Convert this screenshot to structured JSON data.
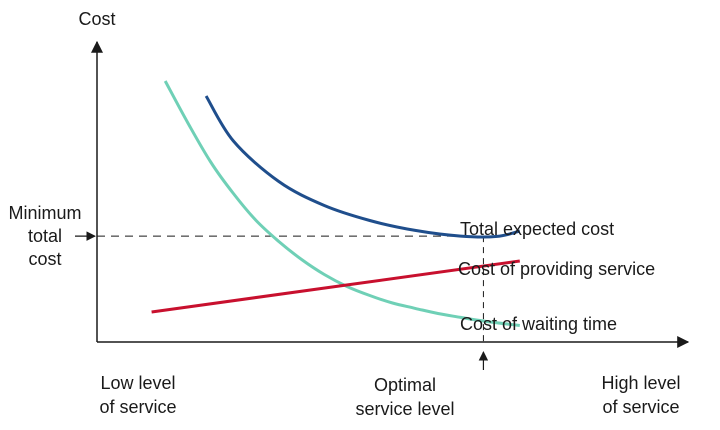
{
  "chart_data": {
    "type": "line",
    "ylabel": "Cost",
    "xlabel_left": [
      "Low level",
      "of service"
    ],
    "xlabel_right": [
      "High level",
      "of service"
    ],
    "optimal_label": [
      "Optimal",
      "service level"
    ],
    "min_cost_label": [
      "Minimum",
      "total",
      "cost"
    ],
    "series": [
      {
        "name": "Total expected cost",
        "color": "#1f4e8c",
        "points": [
          [
            0.24,
            8.2
          ],
          [
            0.3,
            6.7
          ],
          [
            0.4,
            5.35
          ],
          [
            0.5,
            4.55
          ],
          [
            0.6,
            4.05
          ],
          [
            0.7,
            3.72
          ],
          [
            0.8,
            3.53
          ],
          [
            0.88,
            3.52
          ],
          [
            0.93,
            3.7
          ]
        ]
      },
      {
        "name": "Cost of providing service",
        "color": "#c8102e",
        "points": [
          [
            0.12,
            1.0
          ],
          [
            0.93,
            2.7
          ]
        ]
      },
      {
        "name": "Cost of waiting time",
        "color": "#6fd0b6",
        "points": [
          [
            0.15,
            8.7
          ],
          [
            0.2,
            7.3
          ],
          [
            0.25,
            6.0
          ],
          [
            0.3,
            4.95
          ],
          [
            0.35,
            4.05
          ],
          [
            0.4,
            3.35
          ],
          [
            0.45,
            2.75
          ],
          [
            0.5,
            2.25
          ],
          [
            0.55,
            1.85
          ],
          [
            0.6,
            1.55
          ],
          [
            0.65,
            1.3
          ],
          [
            0.7,
            1.12
          ],
          [
            0.75,
            0.95
          ],
          [
            0.8,
            0.82
          ],
          [
            0.85,
            0.7
          ],
          [
            0.93,
            0.55
          ]
        ]
      }
    ],
    "optimal_x": 0.85,
    "min_total_cost": 3.53,
    "xlim": [
      0,
      1.3
    ],
    "ylim": [
      0,
      10
    ],
    "grid": false
  }
}
